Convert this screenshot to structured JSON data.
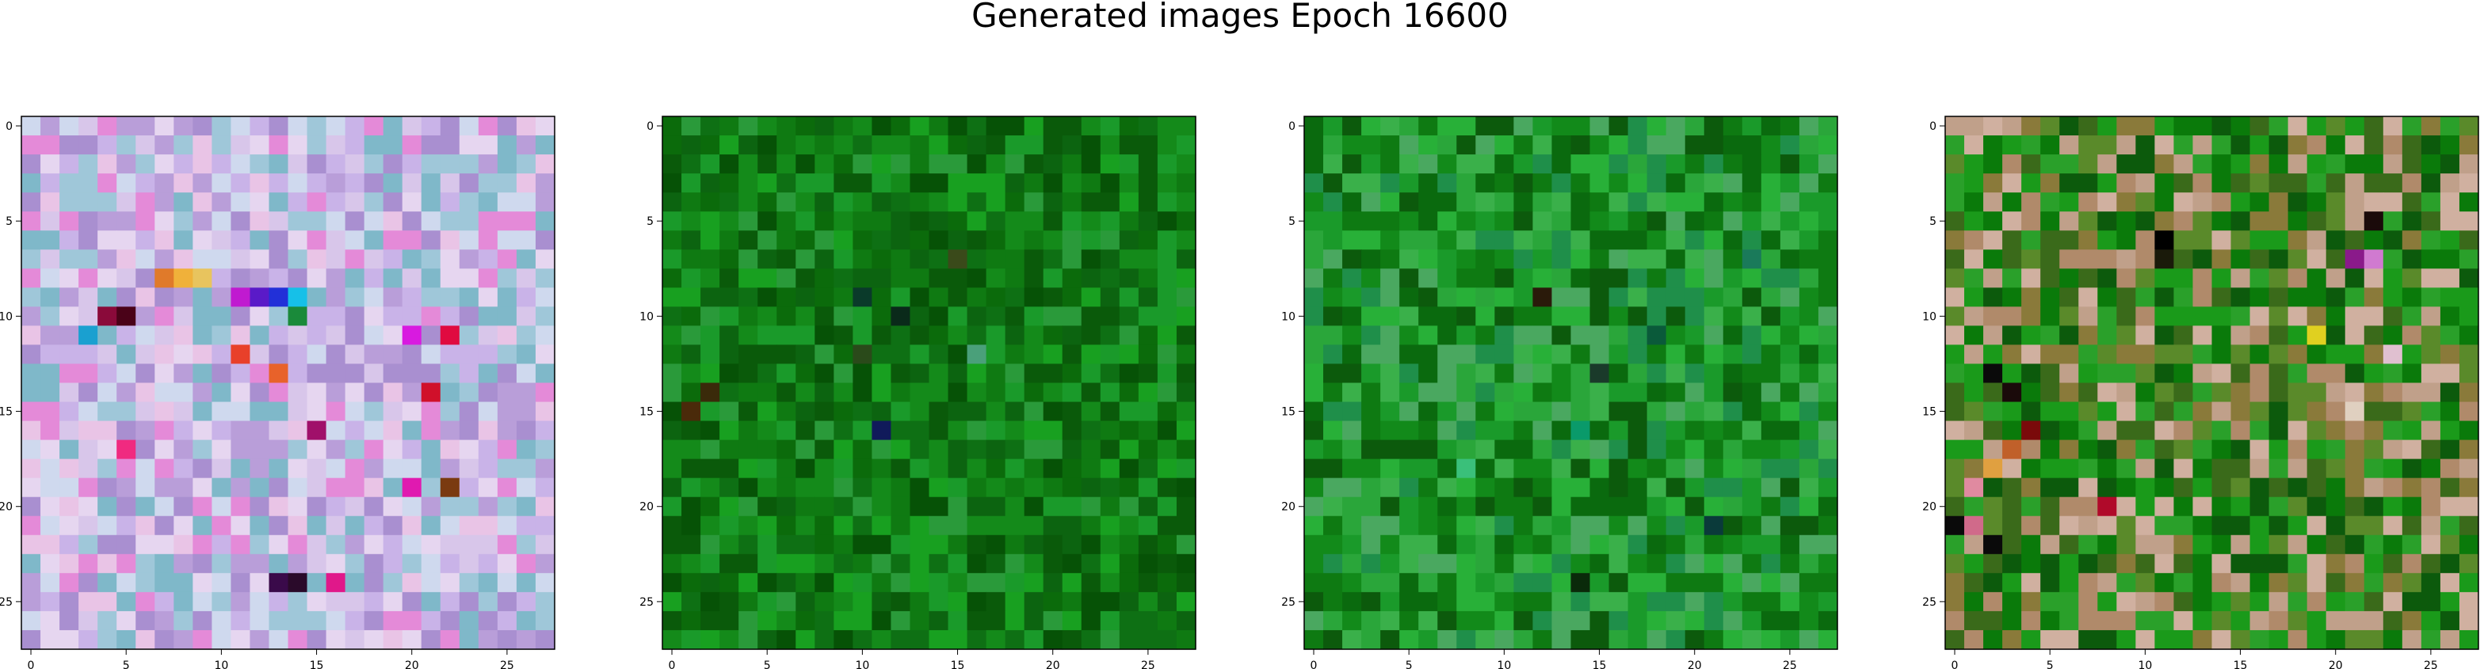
{
  "figure": {
    "title": "Generated images Epoch 16600"
  },
  "chart_data": [
    {
      "type": "heatmap",
      "grid_size": [
        28,
        28
      ],
      "xlim": [
        -0.5,
        27.5
      ],
      "ylim": [
        27.5,
        -0.5
      ],
      "xticks": [
        0,
        5,
        10,
        15,
        20,
        25
      ],
      "yticks": [
        0,
        5,
        10,
        15,
        20,
        25
      ],
      "xlabel": "",
      "ylabel": "",
      "palette": [
        "#c9b3e8",
        "#e6d6f0",
        "#b99ed9",
        "#d8c6ea",
        "#a98fd0",
        "#e9c4e6",
        "#9fc7d9",
        "#cfd9ee",
        "#e48ad8",
        "#7fb8c9"
      ],
      "accents": [
        {
          "row": 8,
          "col": 7,
          "color": "#e07a2a"
        },
        {
          "row": 8,
          "col": 8,
          "color": "#f0b13a"
        },
        {
          "row": 8,
          "col": 9,
          "color": "#e8c45e"
        },
        {
          "row": 9,
          "col": 11,
          "color": "#c01ad0"
        },
        {
          "row": 9,
          "col": 12,
          "color": "#5a1ac8"
        },
        {
          "row": 9,
          "col": 13,
          "color": "#2230d8"
        },
        {
          "row": 9,
          "col": 14,
          "color": "#16c0e8"
        },
        {
          "row": 10,
          "col": 4,
          "color": "#8a0a3a"
        },
        {
          "row": 10,
          "col": 5,
          "color": "#4a0218"
        },
        {
          "row": 10,
          "col": 14,
          "color": "#1a8a3a"
        },
        {
          "row": 11,
          "col": 3,
          "color": "#1aa0d0"
        },
        {
          "row": 11,
          "col": 20,
          "color": "#d81ae0"
        },
        {
          "row": 11,
          "col": 22,
          "color": "#e00a40"
        },
        {
          "row": 12,
          "col": 11,
          "color": "#e8402a"
        },
        {
          "row": 13,
          "col": 13,
          "color": "#e8622a"
        },
        {
          "row": 14,
          "col": 21,
          "color": "#d0102a"
        },
        {
          "row": 16,
          "col": 15,
          "color": "#a0106a"
        },
        {
          "row": 17,
          "col": 5,
          "color": "#f02a80"
        },
        {
          "row": 19,
          "col": 20,
          "color": "#e01ab0"
        },
        {
          "row": 19,
          "col": 22,
          "color": "#7a3a10"
        },
        {
          "row": 24,
          "col": 13,
          "color": "#3a0a4a"
        },
        {
          "row": 24,
          "col": 14,
          "color": "#2a0a2a"
        },
        {
          "row": 24,
          "col": 16,
          "color": "#e0188a"
        }
      ]
    },
    {
      "type": "heatmap",
      "grid_size": [
        28,
        28
      ],
      "xlim": [
        -0.5,
        27.5
      ],
      "ylim": [
        27.5,
        -0.5
      ],
      "xticks": [
        0,
        5,
        10,
        15,
        20,
        25
      ],
      "yticks": [
        0,
        5,
        10,
        15,
        20,
        25
      ],
      "xlabel": "",
      "ylabel": "",
      "palette": [
        "#0b6b0b",
        "#0f7a12",
        "#148a1a",
        "#0a5a0a",
        "#1a9a2a",
        "#0c6410",
        "#2a9a3a",
        "#0e7014",
        "#065206",
        "#18a020"
      ],
      "accents": [
        {
          "row": 10,
          "col": 12,
          "color": "#0a2a1a"
        },
        {
          "row": 12,
          "col": 10,
          "color": "#2a4a1a"
        },
        {
          "row": 16,
          "col": 11,
          "color": "#101a5a"
        },
        {
          "row": 12,
          "col": 16,
          "color": "#4aa07a"
        },
        {
          "row": 14,
          "col": 2,
          "color": "#3a2a0a"
        },
        {
          "row": 15,
          "col": 1,
          "color": "#4a2a0a"
        },
        {
          "row": 9,
          "col": 10,
          "color": "#0a3a2a"
        },
        {
          "row": 7,
          "col": 15,
          "color": "#3a4a1a"
        }
      ]
    },
    {
      "type": "heatmap",
      "grid_size": [
        28,
        28
      ],
      "xlim": [
        -0.5,
        27.5
      ],
      "ylim": [
        27.5,
        -0.5
      ],
      "xticks": [
        0,
        5,
        10,
        15,
        20,
        25
      ],
      "yticks": [
        0,
        5,
        10,
        15,
        20,
        25
      ],
      "xlabel": "",
      "ylabel": "",
      "palette": [
        "#0e7a12",
        "#1a9a2a",
        "#2aa63a",
        "#0a6a0e",
        "#3ab04a",
        "#128a1a",
        "#1f8f4a",
        "#0c5a0c",
        "#28b038",
        "#4aa860"
      ],
      "accents": [
        {
          "row": 9,
          "col": 12,
          "color": "#2a1a0a"
        },
        {
          "row": 13,
          "col": 15,
          "color": "#1a3a2a"
        },
        {
          "row": 16,
          "col": 14,
          "color": "#0a9a6a"
        },
        {
          "row": 21,
          "col": 21,
          "color": "#0a3a3a"
        },
        {
          "row": 24,
          "col": 14,
          "color": "#0a2a0a"
        },
        {
          "row": 11,
          "col": 18,
          "color": "#0a5a3a"
        },
        {
          "row": 18,
          "col": 8,
          "color": "#3ac07a"
        },
        {
          "row": 7,
          "col": 23,
          "color": "#1a7a5a"
        }
      ]
    },
    {
      "type": "heatmap",
      "grid_size": [
        28,
        28
      ],
      "xlim": [
        -0.5,
        27.5
      ],
      "ylim": [
        27.5,
        -0.5
      ],
      "xticks": [
        0,
        5,
        10,
        15,
        20,
        25
      ],
      "yticks": [
        0,
        5,
        10,
        15,
        20,
        25
      ],
      "xlabel": "",
      "ylabel": "",
      "palette": [
        "#1a9a1a",
        "#0a7a0a",
        "#5a8a2a",
        "#8a7a3a",
        "#b08a6a",
        "#2aa02a",
        "#c0a08a",
        "#3a6a1a",
        "#d0b0a0",
        "#0c5a0c"
      ],
      "accents": [
        {
          "row": 6,
          "col": 11,
          "color": "#000000"
        },
        {
          "row": 7,
          "col": 11,
          "color": "#1a1a0a"
        },
        {
          "row": 7,
          "col": 21,
          "color": "#8a1a8a"
        },
        {
          "row": 7,
          "col": 22,
          "color": "#d07ad0"
        },
        {
          "row": 5,
          "col": 22,
          "color": "#1a0a0a"
        },
        {
          "row": 11,
          "col": 19,
          "color": "#e0d020"
        },
        {
          "row": 13,
          "col": 2,
          "color": "#0a0a0a"
        },
        {
          "row": 14,
          "col": 3,
          "color": "#1a0a0a"
        },
        {
          "row": 16,
          "col": 4,
          "color": "#7a0a0a"
        },
        {
          "row": 17,
          "col": 3,
          "color": "#c0602a"
        },
        {
          "row": 18,
          "col": 2,
          "color": "#e0a040"
        },
        {
          "row": 19,
          "col": 1,
          "color": "#e08aa0"
        },
        {
          "row": 21,
          "col": 0,
          "color": "#0a0a0a"
        },
        {
          "row": 21,
          "col": 1,
          "color": "#d06a8a"
        },
        {
          "row": 22,
          "col": 2,
          "color": "#0a0a0a"
        },
        {
          "row": 20,
          "col": 8,
          "color": "#b00a2a"
        },
        {
          "row": 15,
          "col": 21,
          "color": "#e0d0c0"
        },
        {
          "row": 12,
          "col": 23,
          "color": "#e0c0d0"
        }
      ]
    }
  ]
}
